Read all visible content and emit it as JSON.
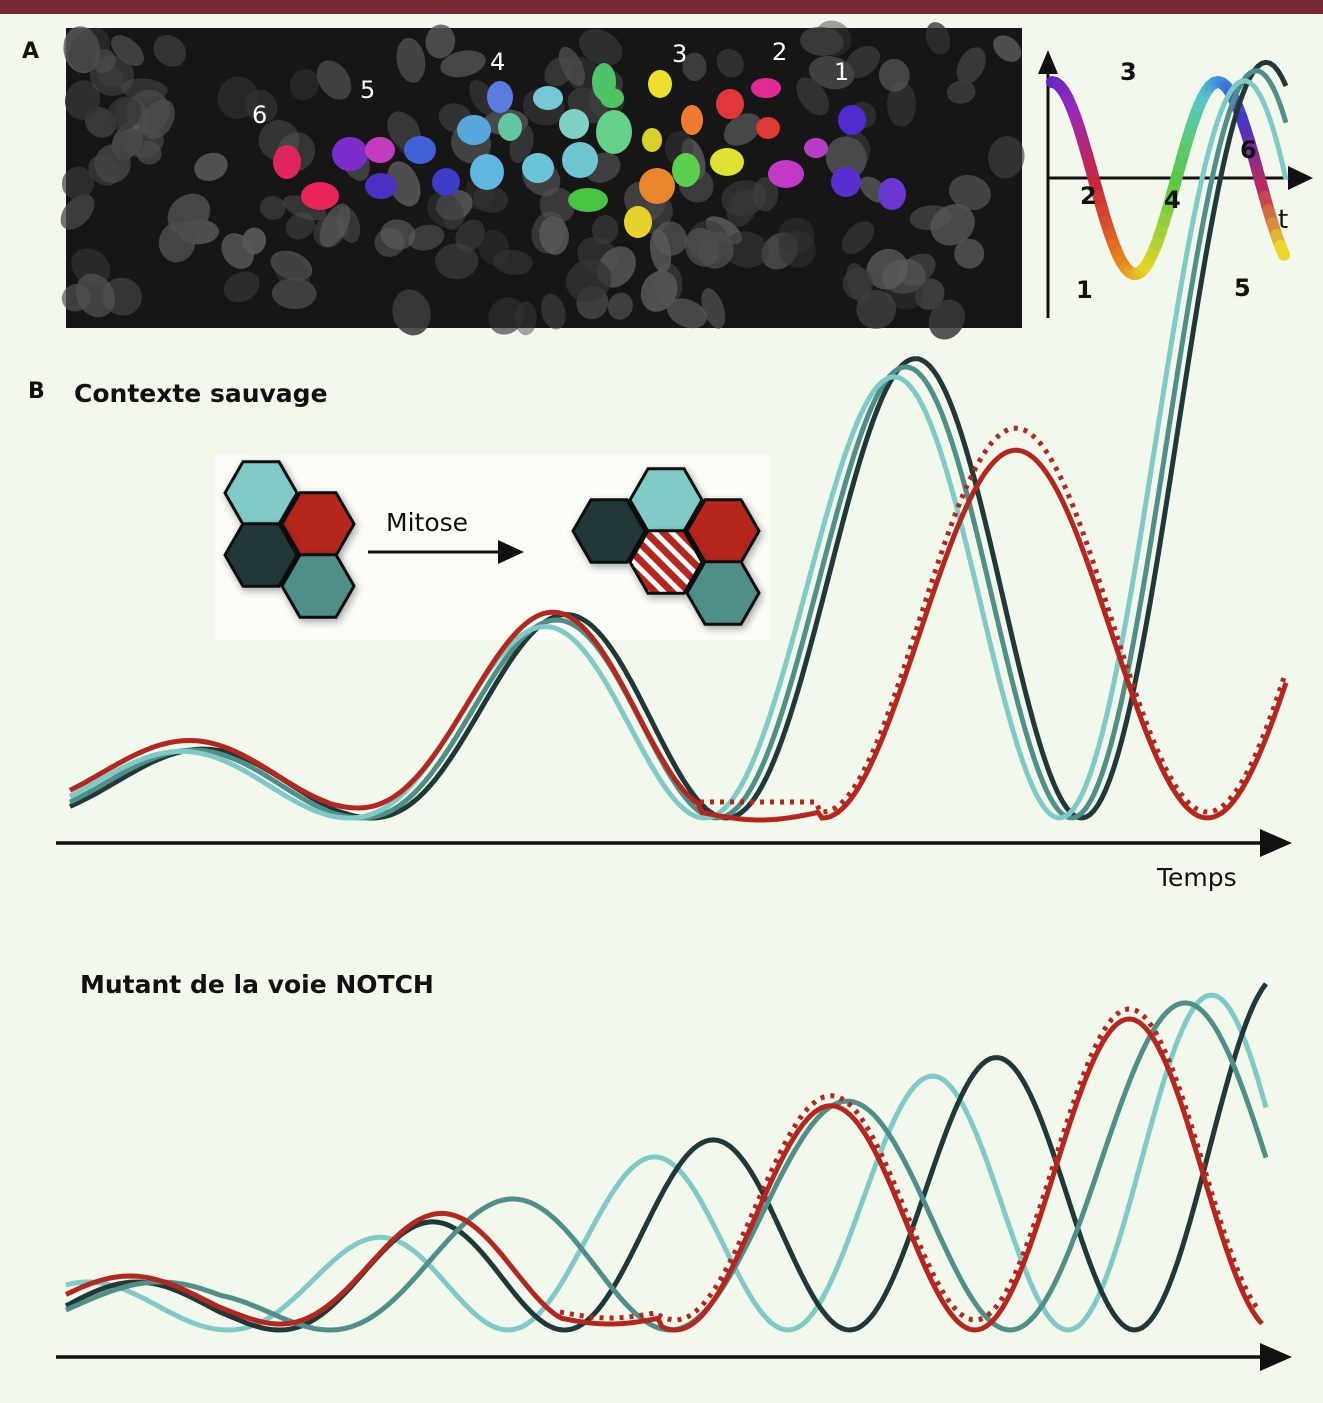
{
  "panel_a": {
    "letter": "A",
    "micrograph_labels": [
      "6",
      "5",
      "4",
      "3",
      "2",
      "1"
    ],
    "phase_curve": {
      "axis_label": "t",
      "phase_labels": [
        "1",
        "2",
        "3",
        "4",
        "5",
        "6"
      ]
    }
  },
  "panel_b": {
    "letter": "B",
    "wild_type": {
      "title": "Contexte sauvage",
      "mitosis_label": "Mitose",
      "time_axis_label": "Temps"
    },
    "mutant": {
      "title": "Mutant de la voie NOTCH"
    }
  },
  "colors": {
    "background": "#f3f8ec",
    "top_bar": "#7a2a33",
    "red": "#b5261e",
    "dark": "#213838",
    "teal": "#4f8f88",
    "light_teal": "#7fcac7"
  }
}
